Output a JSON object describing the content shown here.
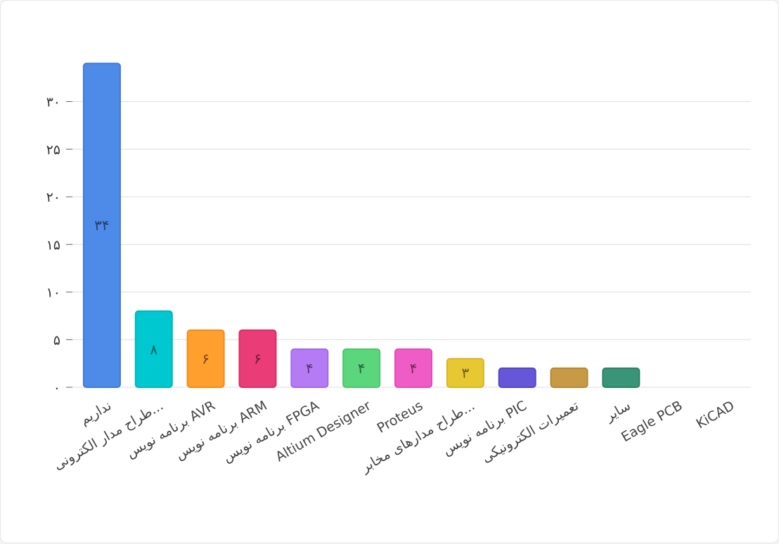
{
  "chart_data": {
    "type": "bar",
    "title": "",
    "xlabel": "",
    "ylabel": "",
    "ylim": [
      0,
      35
    ],
    "yticks": [
      0,
      5,
      10,
      15,
      20,
      25,
      30
    ],
    "ytick_labels": [
      "۰",
      "۵",
      "۱۰",
      "۱۵",
      "۲۰",
      "۲۵",
      "۳۰"
    ],
    "grid": true,
    "categories": [
      "نداریم",
      "طراح مدار الکترونی...",
      "برنامه نویس AVR",
      "برنامه نویس ARM",
      "برنامه نویس FPGA",
      "Altium Designer",
      "Proteus",
      "طراح مدارهای مخابر...",
      "برنامه نویس PIC",
      "تعمیرات الکترونیکی",
      "سایر",
      "Eagle PCB",
      "KiCAD"
    ],
    "values": [
      34,
      8,
      6,
      6,
      4,
      4,
      4,
      3,
      2,
      2,
      2,
      0,
      0
    ],
    "data_labels": [
      "۳۴",
      "۸",
      "۶",
      "۶",
      "۴",
      "۴",
      "۴",
      "۳",
      "",
      "",
      "",
      "",
      ""
    ],
    "colors": [
      "#4e8be9",
      "#00c8d0",
      "#ff9f2e",
      "#ea3c76",
      "#b57bf5",
      "#5cd67c",
      "#f05cc6",
      "#e8c832",
      "#6557d7",
      "#c99a45",
      "#3a9477",
      "#999999",
      "#999999"
    ],
    "border_colors": [
      "#3f7bd8",
      "#00b4bc",
      "#eb8d1e",
      "#d62f66",
      "#a26ae2",
      "#4cc46b",
      "#de4db4",
      "#d6b723",
      "#5447c5",
      "#b78835",
      "#2c8268",
      "#888888",
      "#888888"
    ]
  }
}
